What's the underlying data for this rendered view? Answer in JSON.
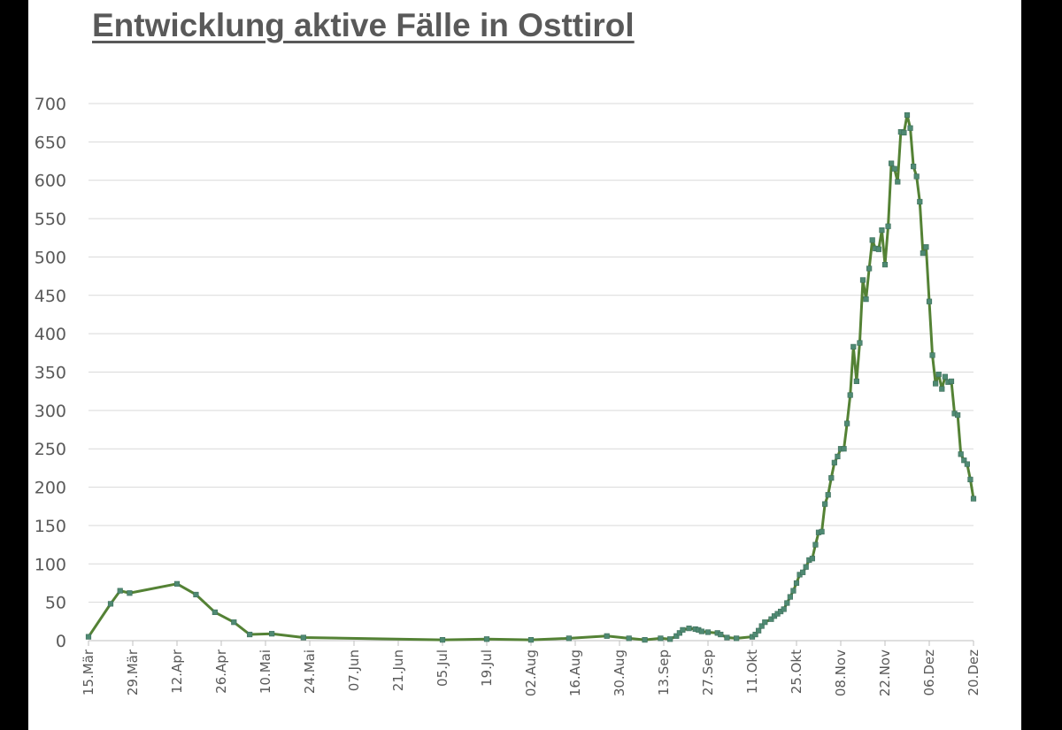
{
  "chart_data": {
    "type": "line",
    "title": "Entwicklung aktive Fälle in Osttirol",
    "xlabel": "",
    "ylabel": "",
    "ylim": [
      0,
      700
    ],
    "yticks": [
      0,
      50,
      100,
      150,
      200,
      250,
      300,
      350,
      400,
      450,
      500,
      550,
      600,
      650,
      700
    ],
    "x_tick_labels": [
      "15.Mär",
      "29.Mär",
      "12.Apr",
      "26.Apr",
      "10.Mai",
      "24.Mai",
      "07.Jun",
      "21.Jun",
      "05.Jul",
      "19.Jul",
      "02.Aug",
      "16.Aug",
      "30.Aug",
      "13.Sep",
      "27.Sep",
      "11.Okt",
      "25.Okt",
      "08.Nov",
      "22.Nov",
      "06.Dez",
      "20.Dez"
    ],
    "grid": true,
    "legend": "none",
    "colors": {
      "line": "#548235",
      "marker": "#4f8a73",
      "grid": "#d9d9d9",
      "text": "#595959"
    },
    "series": [
      {
        "points": [
          [
            "15.Mär",
            5
          ],
          [
            "22.Mär",
            48
          ],
          [
            "25.Mär",
            65
          ],
          [
            "28.Mär",
            62
          ],
          [
            "12.Apr",
            74
          ],
          [
            "18.Apr",
            60
          ],
          [
            "24.Apr",
            37
          ],
          [
            "30.Apr",
            24
          ],
          [
            "05.Mai",
            8
          ],
          [
            "12.Mai",
            9
          ],
          [
            "22.Mai",
            4
          ],
          [
            "05.Jul",
            1
          ],
          [
            "19.Jul",
            2
          ],
          [
            "02.Aug",
            1
          ],
          [
            "14.Aug",
            3
          ],
          [
            "26.Aug",
            6
          ],
          [
            "02.Sep",
            3
          ],
          [
            "07.Sep",
            1
          ],
          [
            "12.Sep",
            3
          ],
          [
            "15.Sep",
            2
          ],
          [
            "17.Sep",
            6
          ],
          [
            "18.Sep",
            10
          ],
          [
            "19.Sep",
            14
          ],
          [
            "21.Sep",
            16
          ],
          [
            "23.Sep",
            15
          ],
          [
            "24.Sep",
            14
          ],
          [
            "25.Sep",
            12
          ],
          [
            "27.Sep",
            11
          ],
          [
            "30.Sep",
            10
          ],
          [
            "01.Okt",
            8
          ],
          [
            "03.Okt",
            4
          ],
          [
            "06.Okt",
            3
          ],
          [
            "11.Okt",
            5
          ],
          [
            "12.Okt",
            8
          ],
          [
            "13.Okt",
            13
          ],
          [
            "14.Okt",
            19
          ],
          [
            "15.Okt",
            24
          ],
          [
            "17.Okt",
            28
          ],
          [
            "18.Okt",
            32
          ],
          [
            "19.Okt",
            35
          ],
          [
            "20.Okt",
            38
          ],
          [
            "21.Okt",
            41
          ],
          [
            "22.Okt",
            49
          ],
          [
            "23.Okt",
            57
          ],
          [
            "24.Okt",
            65
          ],
          [
            "25.Okt",
            75
          ],
          [
            "26.Okt",
            86
          ],
          [
            "27.Okt",
            89
          ],
          [
            "28.Okt",
            96
          ],
          [
            "29.Okt",
            105
          ],
          [
            "30.Okt",
            107
          ],
          [
            "31.Okt",
            125
          ],
          [
            "01.Nov",
            141
          ],
          [
            "02.Nov",
            142
          ],
          [
            "03.Nov",
            178
          ],
          [
            "04.Nov",
            190
          ],
          [
            "05.Nov",
            212
          ],
          [
            "06.Nov",
            232
          ],
          [
            "07.Nov",
            240
          ],
          [
            "08.Nov",
            250
          ],
          [
            "09.Nov",
            250
          ],
          [
            "10.Nov",
            283
          ],
          [
            "11.Nov",
            320
          ],
          [
            "12.Nov",
            383
          ],
          [
            "13.Nov",
            338
          ],
          [
            "14.Nov",
            388
          ],
          [
            "15.Nov",
            470
          ],
          [
            "16.Nov",
            445
          ],
          [
            "17.Nov",
            485
          ],
          [
            "18.Nov",
            522
          ],
          [
            "19.Nov",
            511
          ],
          [
            "20.Nov",
            510
          ],
          [
            "21.Nov",
            535
          ],
          [
            "22.Nov",
            490
          ],
          [
            "23.Nov",
            540
          ],
          [
            "24.Nov",
            622
          ],
          [
            "25.Nov",
            615
          ],
          [
            "26.Nov",
            598
          ],
          [
            "27.Nov",
            663
          ],
          [
            "28.Nov",
            662
          ],
          [
            "29.Nov",
            685
          ],
          [
            "30.Nov",
            668
          ],
          [
            "01.Dez",
            618
          ],
          [
            "02.Dez",
            605
          ],
          [
            "03.Dez",
            572
          ],
          [
            "04.Dez",
            505
          ],
          [
            "05.Dez",
            513
          ],
          [
            "06.Dez",
            442
          ],
          [
            "07.Dez",
            372
          ],
          [
            "08.Dez",
            335
          ],
          [
            "09.Dez",
            347
          ],
          [
            "10.Dez",
            328
          ],
          [
            "11.Dez",
            344
          ],
          [
            "12.Dez",
            337
          ],
          [
            "13.Dez",
            338
          ],
          [
            "14.Dez",
            296
          ],
          [
            "15.Dez",
            294
          ],
          [
            "16.Dez",
            243
          ],
          [
            "17.Dez",
            235
          ],
          [
            "18.Dez",
            230
          ],
          [
            "19.Dez",
            210
          ],
          [
            "20.Dez",
            185
          ]
        ]
      }
    ]
  }
}
